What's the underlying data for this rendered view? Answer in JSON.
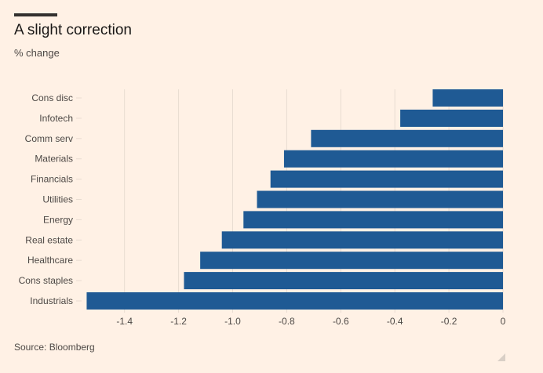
{
  "header": {
    "title": "A slight correction",
    "subtitle": "% change"
  },
  "footer": {
    "source": "Source: Bloomberg"
  },
  "colors": {
    "background": "#FFF1E5",
    "bar": "#1F5A94",
    "grid": "#e8dcd1",
    "text": "#4d4845"
  },
  "chart_data": {
    "type": "bar",
    "orientation": "horizontal",
    "title": "A slight correction",
    "ylabel": "% change",
    "categories": [
      "Cons disc",
      "Infotech",
      "Comm serv",
      "Materials",
      "Financials",
      "Utilities",
      "Energy",
      "Real estate",
      "Healthcare",
      "Cons staples",
      "Industrials"
    ],
    "values": [
      -0.26,
      -0.38,
      -0.71,
      -0.81,
      -0.86,
      -0.91,
      -0.96,
      -1.04,
      -1.12,
      -1.18,
      -1.54
    ],
    "xlim": [
      -1.55,
      0
    ],
    "xticks": [
      -1.4,
      -1.2,
      -1.0,
      -0.8,
      -0.6,
      -0.4,
      -0.2,
      0
    ],
    "xtick_labels": [
      "-1.4",
      "-1.2",
      "-1.0",
      "-0.8",
      "-0.6",
      "-0.4",
      "-0.2",
      "0"
    ],
    "grid": true
  }
}
